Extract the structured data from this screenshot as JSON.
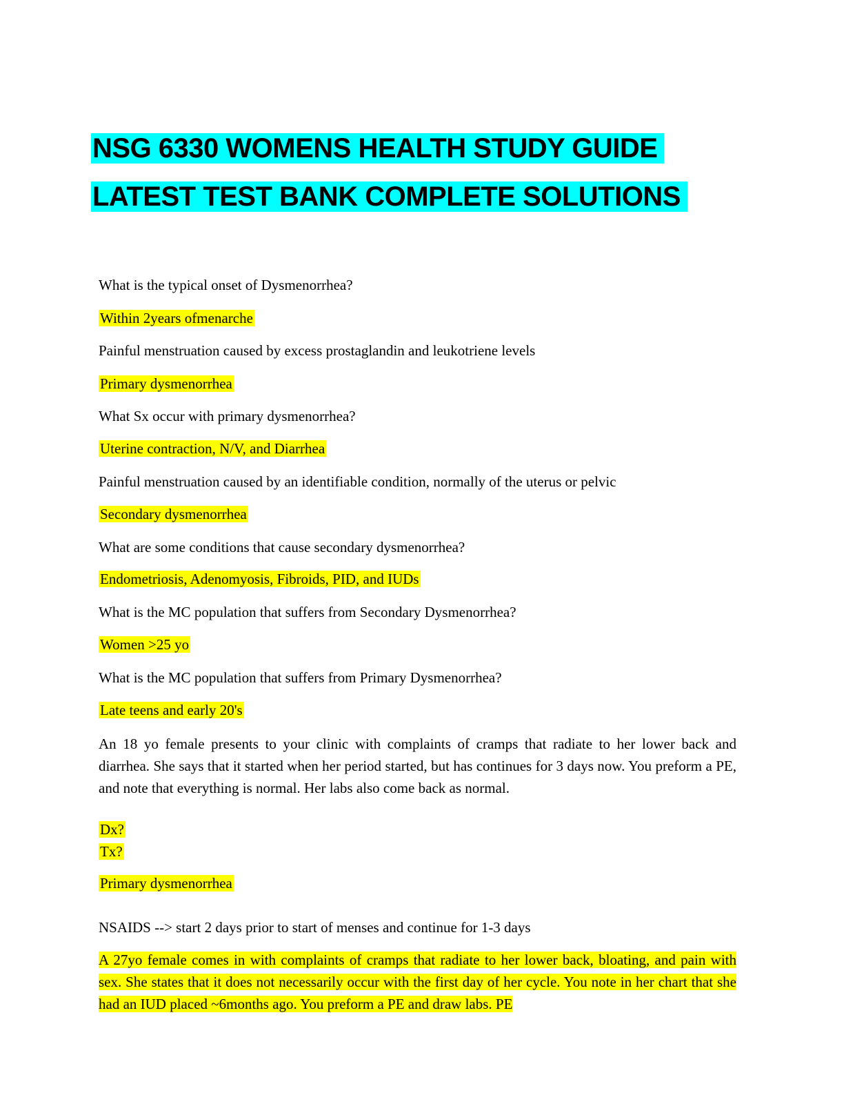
{
  "header": {
    "title_line1": "NSG 6330 WOMENS HEALTH STUDY GUIDE",
    "title_line2": "LATEST TEST BANK COMPLETE SOLUTIONS"
  },
  "content": {
    "q1": "What is the typical onset of Dysmenorrhea?",
    "a1": "Within 2years ofmenarche",
    "q2": "Painful menstruation caused by excess prostaglandin and leukotriene levels",
    "a2": "Primary dysmenorrhea",
    "q3": "What Sx occur with primary dysmenorrhea?",
    "a3": "Uterine contraction, N/V, and Diarrhea",
    "q4": "Painful menstruation caused by an identifiable condition, normally of the uterus or pelvic",
    "a4": "Secondary dysmenorrhea",
    "q5": "What are some conditions that cause secondary dysmenorrhea?",
    "a5": "Endometriosis, Adenomyosis, Fibroids, PID, and IUDs",
    "q6": "What is the MC population that suffers from Secondary Dysmenorrhea?",
    "a6": "Women >25 yo",
    "q7": "What is the MC population that suffers from Primary Dysmenorrhea?",
    "a7": "Late teens and early 20's",
    "case1": "An 18 yo female presents to your clinic with complaints of cramps that radiate to her lower back and diarrhea. She says that it started when her period started, but has continues for 3 days now. You preform a PE, and note that everything is normal. Her labs also come back as normal.",
    "dx": "Dx?",
    "tx": "Tx?",
    "case1_answer": "Primary dysmenorrhea",
    "case1_tx": "NSAIDS --> start 2 days prior to start of menses and continue for 1-3 days",
    "case2": "A 27yo female comes in with complaints of cramps that radiate to her lower back, bloating, and pain with sex. She states that it does not necessarily occur with the first day of her cycle. You note in her chart that she had an IUD placed ~6months ago. You preform a PE and draw labs. PE"
  },
  "colors": {
    "title_highlight": "#00ffff",
    "answer_highlight": "#ffff00"
  }
}
